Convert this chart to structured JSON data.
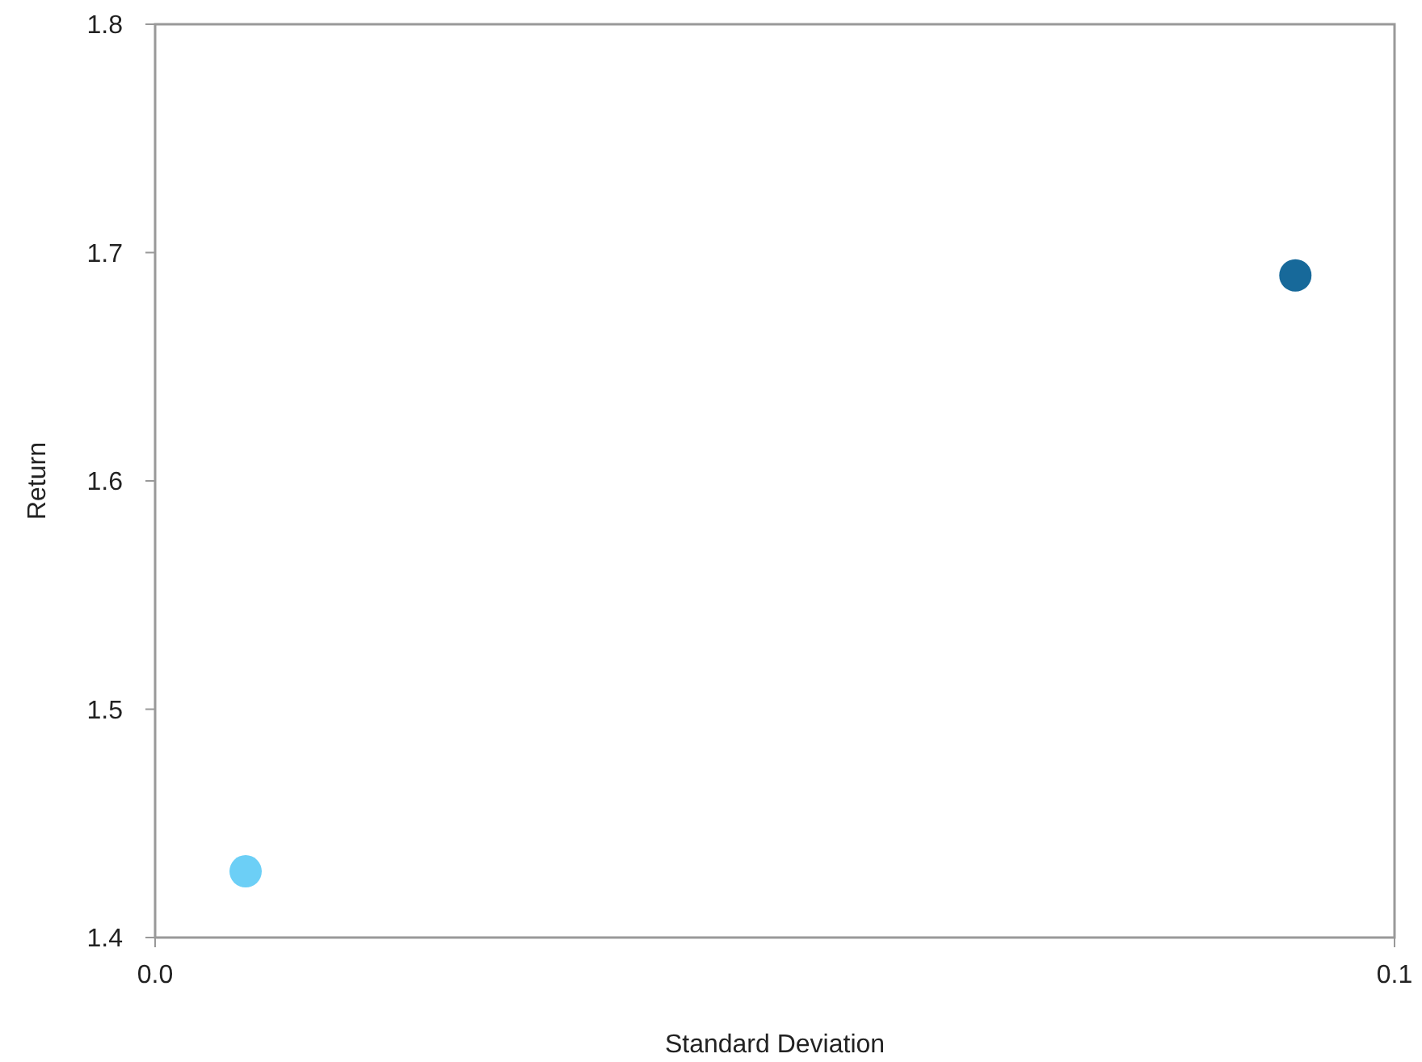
{
  "chart_data": {
    "type": "scatter",
    "xlabel": "Standard Deviation",
    "ylabel": "Return",
    "x": [
      0.0073,
      0.092
    ],
    "values": [
      1.429,
      1.69
    ],
    "colors": [
      "#6ccff6",
      "#17699a"
    ],
    "xlim": [
      0,
      0.1
    ],
    "xticks": [
      {
        "value": 0,
        "label": "0.0"
      },
      0.1
    ],
    "ylim": [
      1.4,
      1.8
    ],
    "yticks": [
      1.4,
      1.5,
      1.6,
      1.7,
      1.8
    ],
    "grid": false,
    "marker": "circle"
  }
}
